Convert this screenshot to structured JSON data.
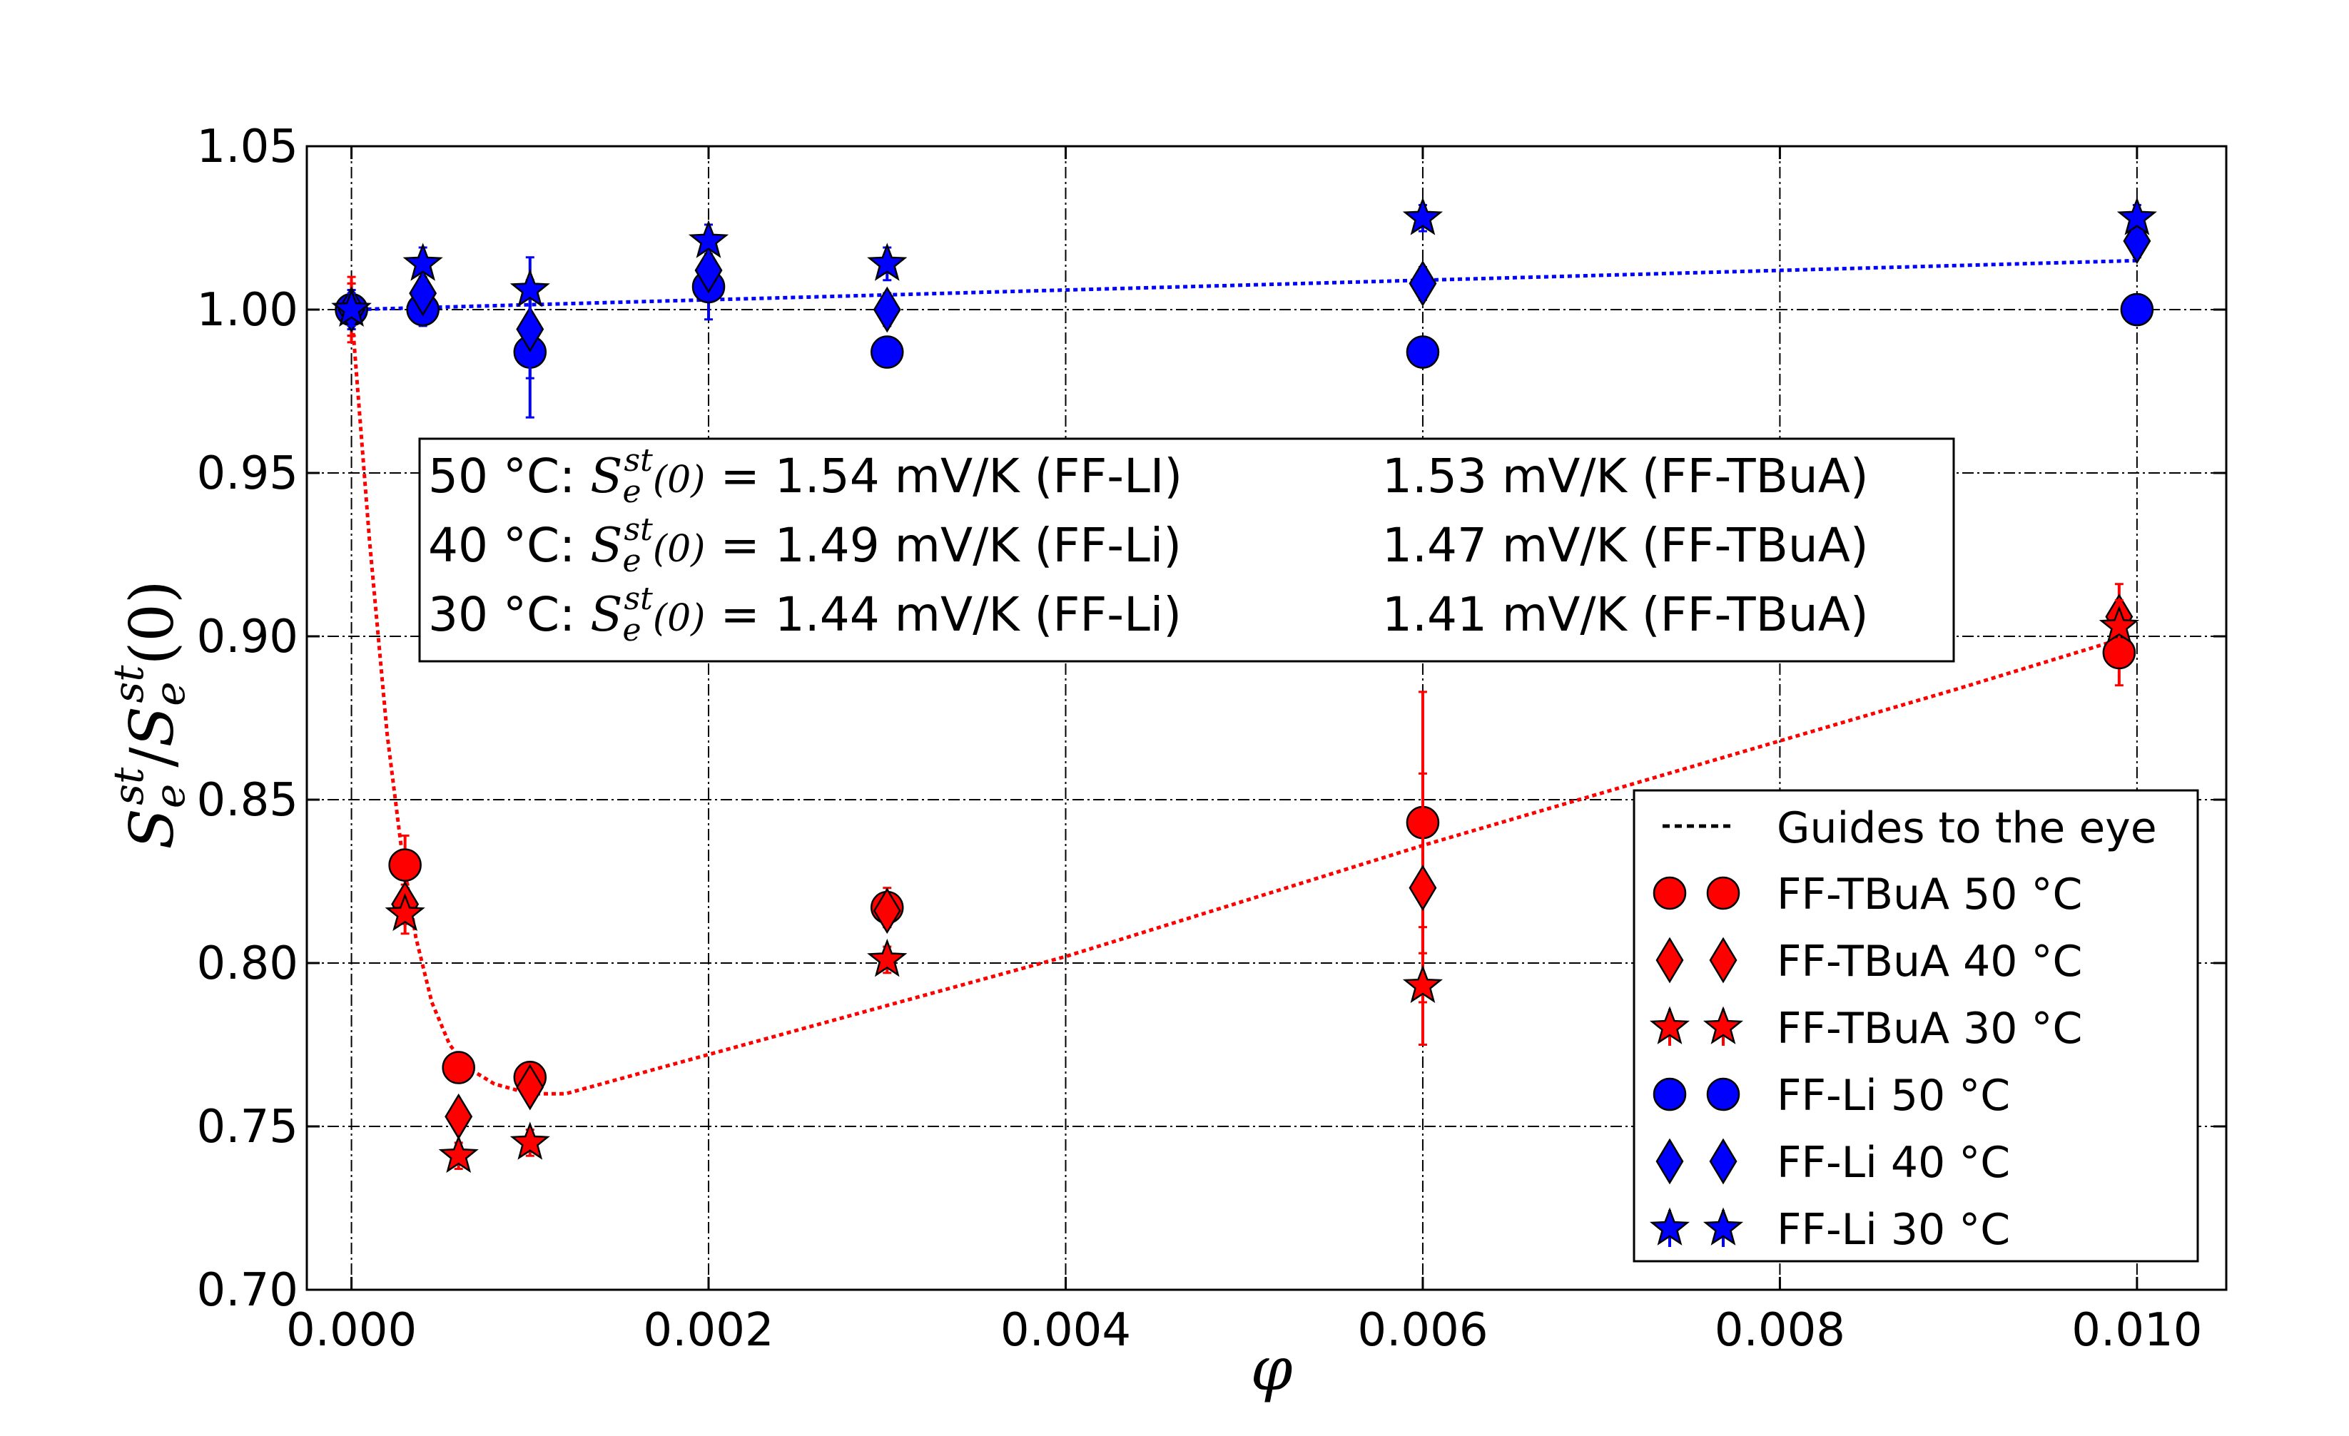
{
  "chart_data": {
    "type": "scatter",
    "title": "",
    "xlabel": "φ",
    "ylabel": "S_e^st / S_e^st(0)",
    "ylabel_parts": {
      "s1": "S",
      "sub1": "e",
      "sup1": "st",
      "slash": "/",
      "s2": "S",
      "sub2": "e",
      "sup2": "st",
      "arg": "(0)"
    },
    "xlim": [
      -0.00025,
      0.0105
    ],
    "ylim": [
      0.7,
      1.05
    ],
    "grid": true,
    "xticks": [
      0.0,
      0.002,
      0.004,
      0.006,
      0.008,
      0.01
    ],
    "xtick_labels": [
      "0.000",
      "0.002",
      "0.004",
      "0.006",
      "0.008",
      "0.010"
    ],
    "yticks": [
      0.7,
      0.75,
      0.8,
      0.85,
      0.9,
      0.95,
      1.0,
      1.05
    ],
    "ytick_labels": [
      "0.70",
      "0.75",
      "0.80",
      "0.85",
      "0.90",
      "0.95",
      "1.00",
      "1.05"
    ],
    "series": [
      {
        "name": "FF-TBuA 50 °C",
        "color": "#ff0000",
        "marker": "circle",
        "x": [
          0.0,
          0.0003,
          0.0006,
          0.001,
          0.003,
          0.006,
          0.0099
        ],
        "y": [
          1.0,
          0.83,
          0.768,
          0.765,
          0.817,
          0.843,
          0.895
        ],
        "err": [
          0.01,
          0.009,
          0.004,
          0.004,
          0.006,
          0.04,
          0.01
        ]
      },
      {
        "name": "FF-TBuA 40 °C",
        "color": "#ff0000",
        "marker": "diamond",
        "x": [
          0.0,
          0.0003,
          0.0006,
          0.001,
          0.003,
          0.006,
          0.0099
        ],
        "y": [
          1.0,
          0.818,
          0.753,
          0.762,
          0.816,
          0.823,
          0.906
        ],
        "err": [
          0.008,
          0.006,
          0.004,
          0.004,
          0.005,
          0.035,
          0.01
        ]
      },
      {
        "name": "FF-TBuA 30 °C",
        "color": "#ff0000",
        "marker": "star",
        "x": [
          0.0,
          0.0003,
          0.0006,
          0.001,
          0.003,
          0.006,
          0.0099
        ],
        "y": [
          1.0,
          0.815,
          0.741,
          0.745,
          0.801,
          0.793,
          0.903
        ],
        "err": [
          0.008,
          0.006,
          0.004,
          0.004,
          0.004,
          0.018,
          0.008
        ]
      },
      {
        "name": "FF-Li 50 °C",
        "color": "#0000ff",
        "marker": "circle",
        "x": [
          0.0,
          0.0004,
          0.001,
          0.002,
          0.003,
          0.006,
          0.01
        ],
        "y": [
          1.0,
          1.0,
          0.987,
          1.007,
          0.987,
          0.987,
          1.0
        ],
        "err": [
          0.006,
          0.005,
          0.02,
          0.01,
          0.004,
          0.004,
          0.004
        ]
      },
      {
        "name": "FF-Li 40 °C",
        "color": "#0000ff",
        "marker": "diamond",
        "x": [
          0.0,
          0.0004,
          0.001,
          0.002,
          0.003,
          0.006,
          0.01
        ],
        "y": [
          1.0,
          1.005,
          0.994,
          1.012,
          1.0,
          1.008,
          1.021
        ],
        "err": [
          0.006,
          0.005,
          0.015,
          0.008,
          0.005,
          0.005,
          0.005
        ]
      },
      {
        "name": "FF-Li 30 °C",
        "color": "#0000ff",
        "marker": "star",
        "x": [
          0.0,
          0.0004,
          0.001,
          0.002,
          0.003,
          0.006,
          0.01
        ],
        "y": [
          1.0,
          1.014,
          1.006,
          1.021,
          1.014,
          1.028,
          1.028
        ],
        "err": [
          0.005,
          0.005,
          0.01,
          0.005,
          0.005,
          0.004,
          0.004
        ]
      }
    ],
    "guides": [
      {
        "name": "red-guide",
        "color": "#ff0000",
        "x": [
          0.0,
          0.0001,
          0.0002,
          0.00028,
          0.00036,
          0.00045,
          0.00055,
          0.00065,
          0.0008,
          0.001,
          0.0012,
          0.002,
          0.003,
          0.004,
          0.005,
          0.006,
          0.007,
          0.008,
          0.009,
          0.0099
        ],
        "y": [
          1.0,
          0.93,
          0.87,
          0.835,
          0.808,
          0.788,
          0.775,
          0.768,
          0.763,
          0.76,
          0.76,
          0.772,
          0.787,
          0.802,
          0.819,
          0.836,
          0.852,
          0.868,
          0.884,
          0.899
        ]
      },
      {
        "name": "blue-guide",
        "color": "#0000ff",
        "x": [
          0.0,
          0.001,
          0.002,
          0.003,
          0.004,
          0.005,
          0.006,
          0.007,
          0.008,
          0.009,
          0.01
        ],
        "y": [
          1.0,
          1.0015,
          1.003,
          1.0045,
          1.006,
          1.0075,
          1.009,
          1.0105,
          1.012,
          1.0135,
          1.015
        ]
      }
    ],
    "legend": {
      "placement": "lower-right",
      "guides_label": "Guides to the eye",
      "entries": [
        "FF-TBuA 50 °C",
        "FF-TBuA 40 °C",
        "FF-TBuA 30 °C",
        "FF-Li 50 °C",
        "FF-Li 40 °C",
        "FF-Li 30 °C"
      ]
    },
    "annotation": {
      "placement": "upper-left",
      "lines": [
        {
          "temp": "50 °C:",
          "sym": "S",
          "sub": "e",
          "sup": "st",
          "arg": "(0)",
          "li": "= 1.54 mV/K (FF-LI)",
          "tbua": "1.53 mV/K (FF-TBuA)"
        },
        {
          "temp": "40 °C:",
          "sym": "S",
          "sub": "e",
          "sup": "st",
          "arg": "(0)",
          "li": "= 1.49 mV/K (FF-Li)",
          "tbua": "1.47 mV/K (FF-TBuA)"
        },
        {
          "temp": "30 °C:",
          "sym": "S",
          "sub": "e",
          "sup": "st",
          "arg": "(0)",
          "li": "= 1.44 mV/K (FF-Li)",
          "tbua": "1.41 mV/K (FF-TBuA)"
        }
      ]
    }
  }
}
